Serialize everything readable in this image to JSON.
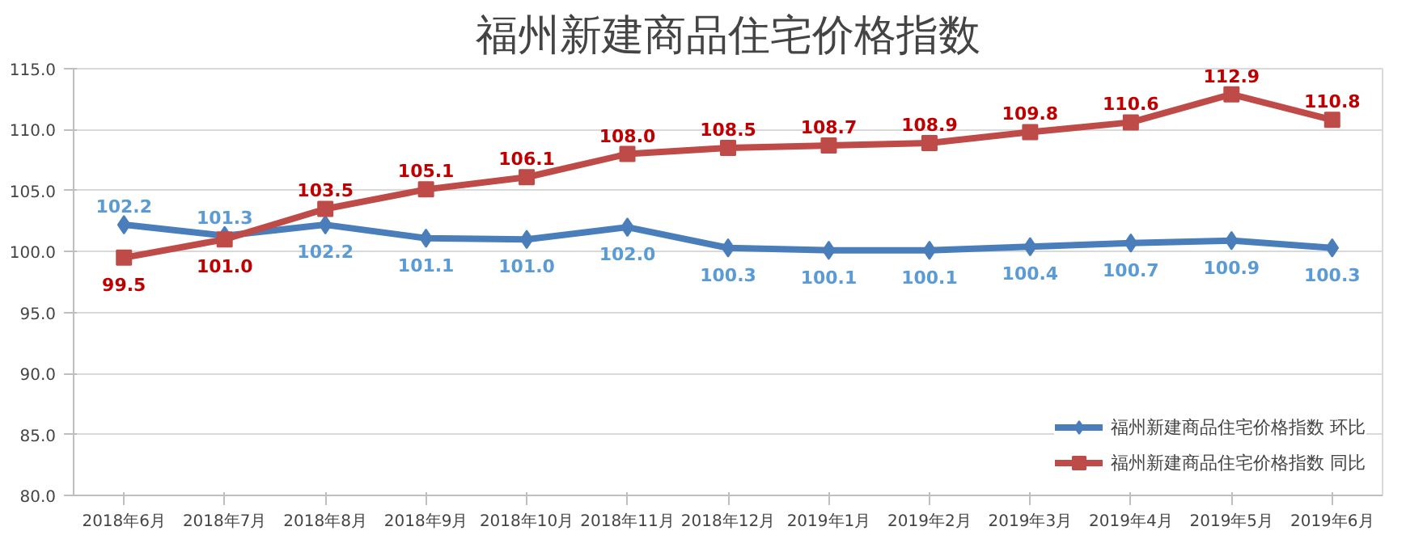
{
  "chart_data": {
    "type": "line",
    "title": "福州新建商品住宅价格指数",
    "categories": [
      "2018年6月",
      "2018年7月",
      "2018年8月",
      "2018年9月",
      "2018年10月",
      "2018年11月",
      "2018年12月",
      "2019年1月",
      "2019年2月",
      "2019年3月",
      "2019年4月",
      "2019年5月",
      "2019年6月"
    ],
    "series": [
      {
        "name": "福州新建商品住宅价格指数 环比",
        "color": "#4a7ebb",
        "marker": "diamond",
        "values": [
          102.2,
          101.3,
          102.2,
          101.1,
          101.0,
          102.0,
          100.3,
          100.1,
          100.1,
          100.4,
          100.7,
          100.9,
          100.3
        ],
        "value_labels": [
          "102.2",
          "101.3",
          "102.2",
          "101.1",
          "101.0",
          "102.0",
          "100.3",
          "100.1",
          "100.1",
          "100.4",
          "100.7",
          "100.9",
          "100.3"
        ]
      },
      {
        "name": "福州新建商品住宅价格指数 同比",
        "color": "#be4b48",
        "marker": "square",
        "values": [
          99.5,
          101.0,
          103.5,
          105.1,
          106.1,
          108.0,
          108.5,
          108.7,
          108.9,
          109.8,
          110.6,
          112.9,
          110.8
        ],
        "value_labels": [
          "99.5",
          "101.0",
          "103.5",
          "105.1",
          "106.1",
          "108.0",
          "108.5",
          "108.7",
          "108.9",
          "109.8",
          "110.6",
          "112.9",
          "110.8"
        ]
      }
    ],
    "ylim": [
      80,
      115
    ],
    "yticks": [
      {
        "value": 80,
        "label": "80.0"
      },
      {
        "value": 85,
        "label": "85.0"
      },
      {
        "value": 90,
        "label": "90.0"
      },
      {
        "value": 95,
        "label": "95.0"
      },
      {
        "value": 100,
        "label": "100.0"
      },
      {
        "value": 105,
        "label": "105.0"
      },
      {
        "value": 110,
        "label": "110.0"
      },
      {
        "value": 115,
        "label": "115.0"
      }
    ],
    "grid": "y",
    "legend": "bottom right"
  }
}
